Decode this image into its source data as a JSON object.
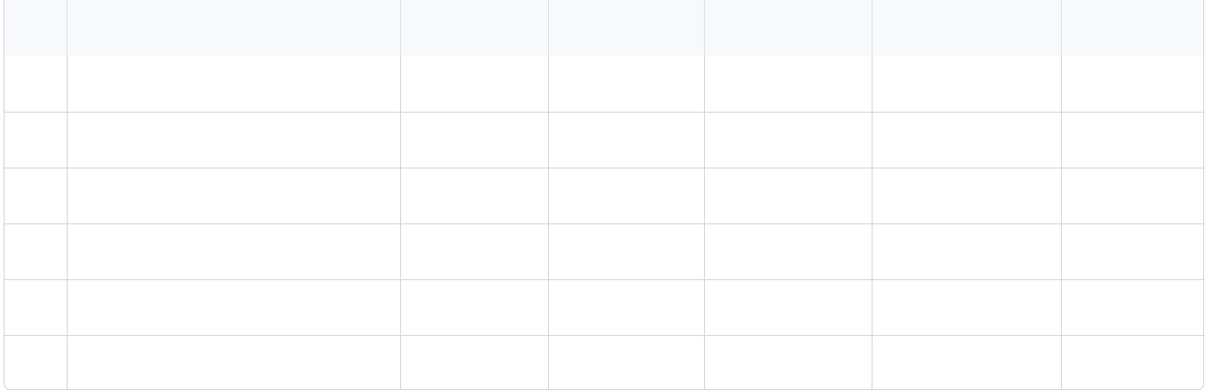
{
  "grid": {
    "columns": [
      {
        "label": ""
      },
      {
        "label": ""
      },
      {
        "label": ""
      },
      {
        "label": ""
      },
      {
        "label": ""
      },
      {
        "label": ""
      },
      {
        "label": ""
      }
    ],
    "rows": [
      [
        "",
        "",
        "",
        "",
        "",
        "",
        ""
      ],
      [
        "",
        "",
        "",
        "",
        "",
        "",
        ""
      ],
      [
        "",
        "",
        "",
        "",
        "",
        "",
        ""
      ],
      [
        "",
        "",
        "",
        "",
        "",
        "",
        ""
      ],
      [
        "",
        "",
        "",
        "",
        "",
        "",
        ""
      ],
      [
        "",
        "",
        "",
        "",
        "",
        "",
        ""
      ]
    ]
  }
}
